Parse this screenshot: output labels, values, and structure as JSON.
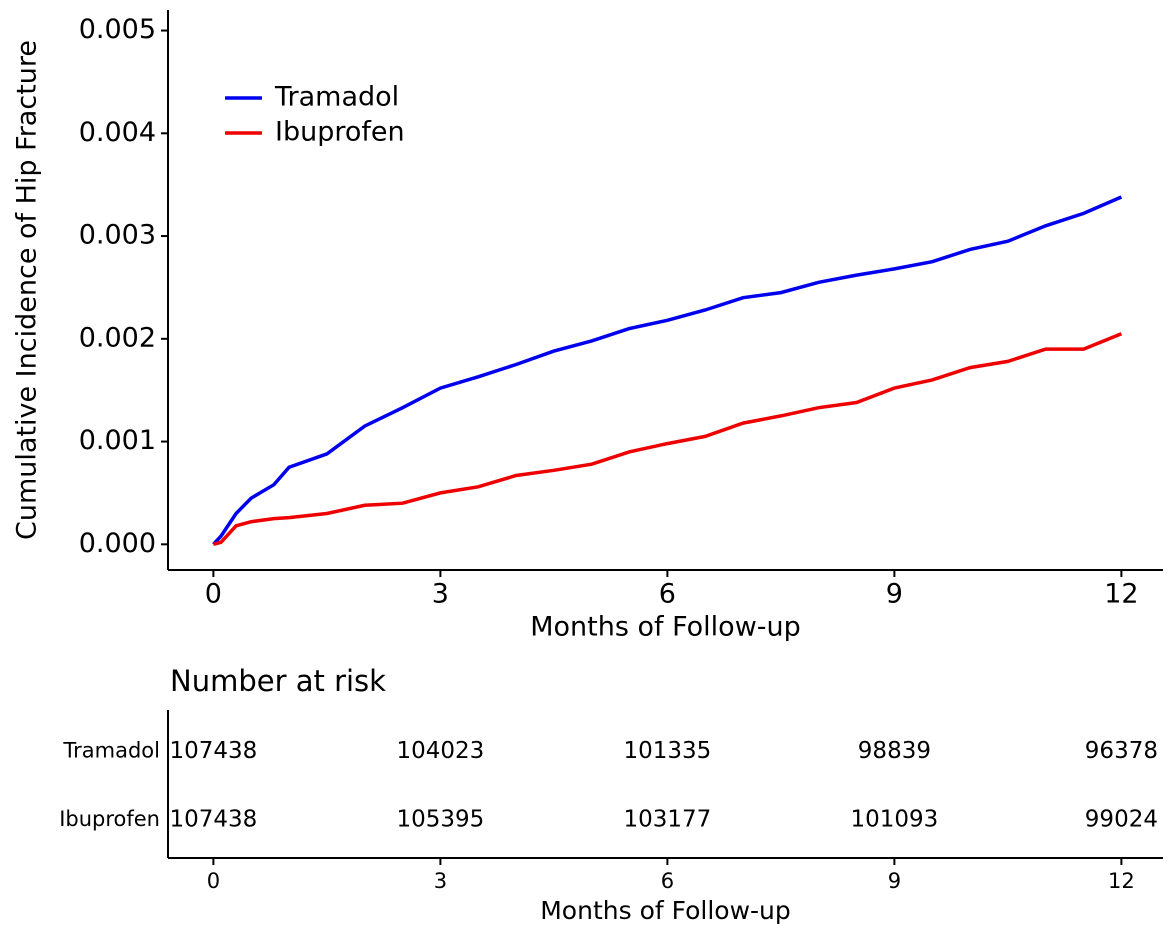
{
  "chart_data": [
    {
      "type": "line",
      "ylabel": "Cumulative Incidence of Hip Fracture",
      "xlabel": "Months of Follow-up",
      "x": [
        0,
        0.1,
        0.3,
        0.5,
        0.8,
        1.0,
        1.5,
        2.0,
        2.5,
        3.0,
        3.5,
        4.0,
        4.5,
        5.0,
        5.5,
        6.0,
        6.5,
        7.0,
        7.5,
        8.0,
        8.5,
        9.0,
        9.5,
        10.0,
        10.5,
        11.0,
        11.5,
        12.0
      ],
      "series": [
        {
          "name": "Tramadol",
          "color": "#0000ee",
          "values": [
            0,
            8e-05,
            0.0003,
            0.00045,
            0.00058,
            0.00075,
            0.00088,
            0.00115,
            0.00133,
            0.00152,
            0.00163,
            0.00175,
            0.00188,
            0.00198,
            0.0021,
            0.00218,
            0.00228,
            0.0024,
            0.00245,
            0.00255,
            0.00262,
            0.00268,
            0.00275,
            0.00287,
            0.00295,
            0.0031,
            0.00322,
            0.00338
          ]
        },
        {
          "name": "Ibuprofen",
          "color": "#ee0000",
          "values": [
            0,
            2e-05,
            0.00018,
            0.00022,
            0.00025,
            0.00026,
            0.0003,
            0.00038,
            0.0004,
            0.0005,
            0.00056,
            0.00067,
            0.00072,
            0.00078,
            0.0009,
            0.00098,
            0.00105,
            0.00118,
            0.00125,
            0.00133,
            0.00138,
            0.00152,
            0.0016,
            0.00172,
            0.00178,
            0.0019,
            0.0019,
            0.00205
          ]
        }
      ],
      "xlim": [
        -0.6,
        12.55
      ],
      "ylim": [
        -0.00025,
        0.0052
      ],
      "xticks": [
        0,
        3,
        6,
        9,
        12
      ],
      "yticks": [
        {
          "value": 0,
          "label": "0.000"
        },
        {
          "value": 0.001,
          "label": "0.001"
        },
        {
          "value": 0.002,
          "label": "0.002"
        },
        {
          "value": 0.003,
          "label": "0.003"
        },
        {
          "value": 0.004,
          "label": "0.004"
        },
        {
          "value": 0.005,
          "label": "0.005"
        }
      ],
      "legend": "upper left",
      "grid": false
    },
    {
      "type": "risk_table",
      "title": "Number at risk",
      "xlabel": "Months of Follow-up",
      "x": [
        0,
        3,
        6,
        9,
        12
      ],
      "series": [
        {
          "name": "Tramadol",
          "values": [
            107438,
            104023,
            101335,
            98839,
            96378
          ]
        },
        {
          "name": "Ibuprofen",
          "values": [
            107438,
            105395,
            103177,
            101093,
            99024
          ]
        }
      ],
      "xlim": [
        -0.6,
        12.55
      ],
      "xticks": [
        0,
        3,
        6,
        9,
        12
      ]
    }
  ]
}
